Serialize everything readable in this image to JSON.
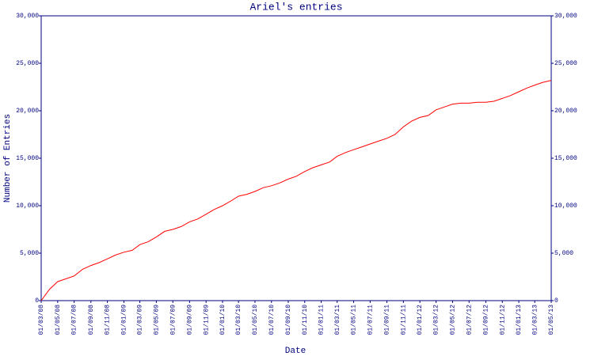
{
  "chart_data": {
    "type": "line",
    "title": "Ariel's entries",
    "xlabel": "Date",
    "ylabel": "Number of Entries",
    "x": [
      "2008-03-01",
      "2008-04-01",
      "2008-05-01",
      "2008-06-01",
      "2008-07-01",
      "2008-08-01",
      "2008-09-01",
      "2008-10-01",
      "2008-11-01",
      "2008-12-01",
      "2009-01-01",
      "2009-02-01",
      "2009-03-01",
      "2009-04-01",
      "2009-05-01",
      "2009-06-01",
      "2009-07-01",
      "2009-08-01",
      "2009-09-01",
      "2009-10-01",
      "2009-11-01",
      "2009-12-01",
      "2010-01-01",
      "2010-02-01",
      "2010-03-01",
      "2010-04-01",
      "2010-05-01",
      "2010-06-01",
      "2010-07-01",
      "2010-08-01",
      "2010-09-01",
      "2010-10-01",
      "2010-11-01",
      "2010-12-01",
      "2011-01-01",
      "2011-02-01",
      "2011-03-01",
      "2011-04-01",
      "2011-05-01",
      "2011-06-01",
      "2011-07-01",
      "2011-08-01",
      "2011-09-01",
      "2011-10-01",
      "2011-11-01",
      "2011-12-01",
      "2012-01-01",
      "2012-02-01",
      "2012-03-01",
      "2012-04-01",
      "2012-05-01",
      "2012-06-01",
      "2012-07-01",
      "2012-08-01",
      "2012-09-01",
      "2012-10-01",
      "2012-11-01",
      "2012-12-01",
      "2013-01-01",
      "2013-02-01",
      "2013-03-01",
      "2013-04-01",
      "2013-05-01"
    ],
    "series": [
      {
        "color": "#ff0000",
        "values": [
          0,
          1200,
          2000,
          2300,
          2600,
          3300,
          3700,
          4000,
          4400,
          4800,
          5100,
          5300,
          5900,
          6200,
          6700,
          7300,
          7500,
          7800,
          8300,
          8600,
          9100,
          9600,
          10000,
          10500,
          11000,
          11200,
          11500,
          11900,
          12100,
          12400,
          12800,
          13100,
          13600,
          14000,
          14300,
          14600,
          15200,
          15600,
          15900,
          16200,
          16500,
          16800,
          17100,
          17500,
          18300,
          18900,
          19300,
          19500,
          20100,
          20400,
          20700,
          20800,
          20800,
          20900,
          20900,
          21000,
          21300,
          21600,
          22000,
          22400,
          22700,
          23000,
          23200
        ]
      }
    ],
    "xlim": [
      "2008-03-01",
      "2013-05-01"
    ],
    "xticks": [
      {
        "value": "2008-03-01",
        "label": "01/03/08"
      },
      {
        "value": "2008-05-01",
        "label": "01/05/08"
      },
      {
        "value": "2008-07-01",
        "label": "01/07/08"
      },
      {
        "value": "2008-09-01",
        "label": "01/09/08"
      },
      {
        "value": "2008-11-01",
        "label": "01/11/08"
      },
      {
        "value": "2009-01-01",
        "label": "01/01/09"
      },
      {
        "value": "2009-03-01",
        "label": "01/03/09"
      },
      {
        "value": "2009-05-01",
        "label": "01/05/09"
      },
      {
        "value": "2009-07-01",
        "label": "01/07/09"
      },
      {
        "value": "2009-09-01",
        "label": "01/09/09"
      },
      {
        "value": "2009-11-01",
        "label": "01/11/09"
      },
      {
        "value": "2010-01-01",
        "label": "01/01/10"
      },
      {
        "value": "2010-03-01",
        "label": "01/03/10"
      },
      {
        "value": "2010-05-01",
        "label": "01/05/10"
      },
      {
        "value": "2010-07-01",
        "label": "01/07/10"
      },
      {
        "value": "2010-09-01",
        "label": "01/09/10"
      },
      {
        "value": "2010-11-01",
        "label": "01/11/10"
      },
      {
        "value": "2011-01-01",
        "label": "01/01/11"
      },
      {
        "value": "2011-03-01",
        "label": "01/03/11"
      },
      {
        "value": "2011-05-01",
        "label": "01/05/11"
      },
      {
        "value": "2011-07-01",
        "label": "01/07/11"
      },
      {
        "value": "2011-09-01",
        "label": "01/09/11"
      },
      {
        "value": "2011-11-01",
        "label": "01/11/11"
      },
      {
        "value": "2012-01-01",
        "label": "01/01/12"
      },
      {
        "value": "2012-03-01",
        "label": "01/03/12"
      },
      {
        "value": "2012-05-01",
        "label": "01/05/12"
      },
      {
        "value": "2012-07-01",
        "label": "01/07/12"
      },
      {
        "value": "2012-09-01",
        "label": "01/09/12"
      },
      {
        "value": "2012-11-01",
        "label": "01/11/12"
      },
      {
        "value": "2013-01-01",
        "label": "01/01/13"
      },
      {
        "value": "2013-03-01",
        "label": "01/03/13"
      },
      {
        "value": "2013-05-01",
        "label": "01/05/13"
      }
    ],
    "ylim": [
      0,
      30000
    ],
    "yticks": [
      0,
      {
        "value": 5000,
        "label": "5,000"
      },
      {
        "value": 10000,
        "label": "10,000"
      },
      {
        "value": 15000,
        "label": "15,000"
      },
      {
        "value": 20000,
        "label": "20,000"
      },
      {
        "value": 25000,
        "label": "25,000"
      },
      {
        "value": 30000,
        "label": "30,000"
      }
    ],
    "y2lim": [
      0,
      30000
    ],
    "y2ticks": [
      0,
      {
        "value": 5000,
        "label": "5,000"
      },
      {
        "value": 10000,
        "label": "10,000"
      },
      {
        "value": 15000,
        "label": "15,000"
      },
      {
        "value": 20000,
        "label": "20,000"
      },
      {
        "value": 25000,
        "label": "25,000"
      },
      {
        "value": 30000,
        "label": "30,000"
      }
    ]
  }
}
